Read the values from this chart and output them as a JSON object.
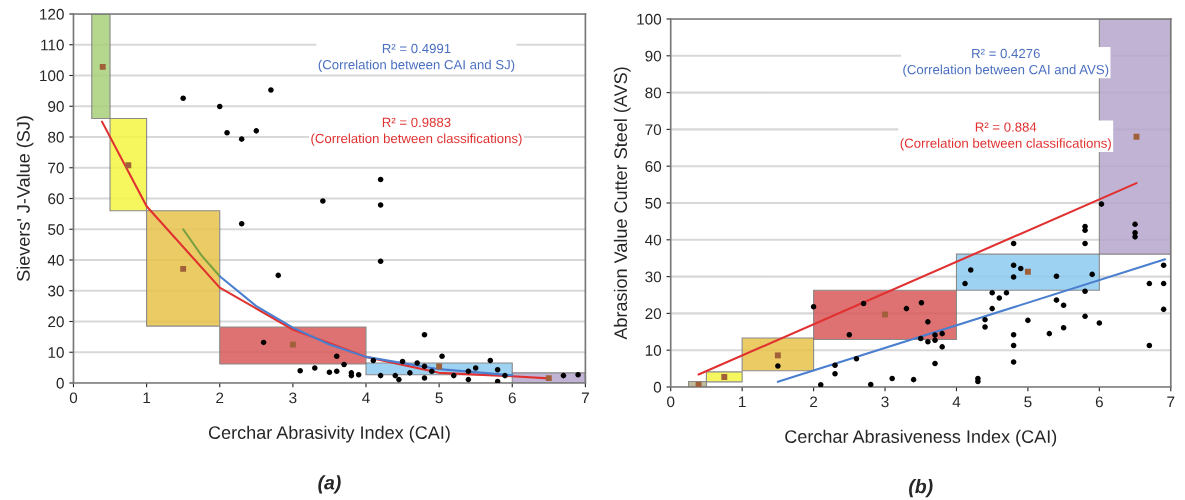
{
  "chart_data": [
    {
      "type": "scatter",
      "xlabel": "Cerchar Abrasivity Index (CAI)",
      "ylabel": "Sievers' J-Value (SJ)",
      "xlim": [
        0,
        7
      ],
      "xticks": [
        0,
        1,
        2,
        3,
        4,
        5,
        6,
        7
      ],
      "ylim": [
        0,
        120
      ],
      "yticks": [
        0,
        10,
        20,
        30,
        40,
        50,
        60,
        70,
        80,
        90,
        100,
        110,
        120
      ],
      "grid": "y",
      "annotations": [
        "R² = 0.4991\n(Correlation between CAI and SJ)",
        "R² = 0.9883\n(Correlation between classifications)",
        "(a)"
      ],
      "series": [
        {
          "type": "bar",
          "x": [
            0.375,
            0.75,
            1.5,
            3.0,
            5.0,
            6.5
          ],
          "base": [
            86,
            56,
            18.5,
            6.2,
            2.7,
            0
          ],
          "values": [
            34,
            30,
            37.5,
            12,
            3.8,
            3.3
          ],
          "colors": [
            "#a9cf7a",
            "#f5f542",
            "#e8c24a",
            "#d9595a",
            "#8ecbf0",
            "#b6a6cc"
          ]
        },
        {
          "marker": "square",
          "color": "#a0603a",
          "x": [
            0.4,
            0.75,
            1.5,
            3.0,
            5.0,
            6.5
          ],
          "values": [
            102.8,
            70.8,
            37.1,
            12.5,
            5.4,
            1.6
          ]
        },
        {
          "type": "line",
          "color": "#e03030",
          "x": [
            0.39,
            1.0,
            2.0,
            3.0,
            3.92,
            4.0,
            5.0,
            6.0,
            6.5
          ],
          "values": [
            85,
            57.5,
            31,
            17.4,
            9.2,
            8.5,
            3.3,
            2.2,
            1.5
          ]
        },
        {
          "type": "line",
          "color": "#7aa040",
          "x": [
            1.5,
            1.75,
            2.0
          ],
          "values": [
            50,
            41.5,
            34.7
          ]
        },
        {
          "type": "line",
          "color": "#4a7fd0",
          "x": [
            2.0,
            2.5,
            3.0,
            3.5,
            4.0,
            5.0,
            6.0
          ],
          "values": [
            34.7,
            25,
            18,
            12.5,
            8.5,
            4.5,
            2.5
          ]
        },
        {
          "marker": "circle",
          "color": "#000000",
          "x": [
            1.5,
            2.0,
            2.1,
            2.3,
            2.5,
            2.7,
            2.3,
            3.41,
            2.8,
            2.6,
            3.6,
            3.1,
            3.3,
            3.5,
            3.6,
            3.7,
            3.8,
            3.8,
            3.9,
            4.2,
            4.2,
            4.2,
            4.8,
            5.04,
            4.1,
            4.2,
            4.4,
            4.45,
            4.5,
            4.6,
            4.7,
            4.8,
            4.8,
            4.9,
            5.2,
            5.4,
            5.4,
            5.5,
            5.7,
            5.8,
            5.8,
            5.9,
            6.7,
            6.9
          ],
          "values": [
            92.6,
            89.9,
            81.4,
            79.3,
            82,
            95.3,
            51.8,
            59.2,
            35,
            13.2,
            8.7,
            4,
            4.9,
            3.5,
            3.8,
            6,
            3.3,
            2.4,
            2.7,
            66.2,
            57.9,
            39.6,
            15.7,
            8.7,
            7.3,
            2.4,
            2.4,
            1.1,
            7,
            3.3,
            6.5,
            1.6,
            5.4,
            3.8,
            2.4,
            3.8,
            1.1,
            4.9,
            7.3,
            0.5,
            4.3,
            2.4,
            2.4,
            2.7
          ]
        }
      ]
    },
    {
      "type": "scatter",
      "xlabel": "Cerchar Abrasiveness Index (CAI)",
      "ylabel": "Abrasion Value Cutter Steel (AVS)",
      "xlim": [
        0,
        7
      ],
      "xticks": [
        0,
        1,
        2,
        3,
        4,
        5,
        6,
        7
      ],
      "ylim": [
        0,
        100
      ],
      "yticks": [
        0,
        10,
        20,
        30,
        40,
        50,
        60,
        70,
        80,
        90,
        100
      ],
      "grid": "y",
      "annotations": [
        "R² = 0.4276\n(Correlation between CAI and AVS)",
        "R² = 0.884\n(Correlation between classifications)",
        "(b)"
      ],
      "series": [
        {
          "type": "bar",
          "x": [
            0.375,
            0.75,
            1.5,
            3.0,
            5.0,
            6.5
          ],
          "base": [
            0,
            1.4,
            4.4,
            12.9,
            26.3,
            36.1
          ],
          "values": [
            1.5,
            2.7,
            8.9,
            13.4,
            9.8,
            63.9
          ],
          "colors": [
            "#b5b08a",
            "#f5f542",
            "#e8c24a",
            "#d9595a",
            "#8ecbf0",
            "#b6a6cc"
          ]
        },
        {
          "marker": "square",
          "color": "#a0603a",
          "x": [
            0.39,
            0.75,
            1.5,
            3.0,
            5.0,
            6.52
          ],
          "values": [
            0.6,
            2.7,
            8.6,
            19.7,
            31.3,
            68
          ]
        },
        {
          "type": "line",
          "color": "#e03030",
          "x": [
            0.39,
            6.52
          ],
          "values": [
            3.4,
            55.4
          ]
        },
        {
          "type": "line",
          "color": "#4a7fd0",
          "x": [
            1.5,
            6.92
          ],
          "values": [
            1.4,
            34.7
          ]
        },
        {
          "marker": "circle",
          "color": "#000000",
          "x": [
            2.0,
            2.1,
            2.3,
            2.3,
            2.5,
            2.6,
            2.7,
            2.8,
            3.1,
            3.3,
            3.4,
            1.5,
            3.51,
            3.6,
            3.5,
            3.6,
            3.7,
            3.7,
            3.8,
            3.8,
            3.7,
            4.3,
            4.3,
            4.12,
            4.2,
            4.4,
            4.4,
            4.5,
            4.5,
            4.6,
            4.7,
            4.8,
            4.8,
            4.8,
            4.8,
            4.8,
            4.8,
            4.9,
            5.0,
            5.3,
            5.4,
            5.4,
            5.5,
            5.5,
            5.8,
            5.8,
            5.8,
            5.8,
            5.8,
            5.9,
            6.0,
            6.03,
            6.5,
            6.5,
            6.5,
            6.7,
            6.7,
            6.9,
            6.9,
            6.9
          ],
          "values": [
            21.8,
            0.6,
            5.9,
            3.6,
            14.2,
            7.7,
            22.7,
            0.7,
            2.3,
            21.3,
            2.0,
            5.7,
            22.9,
            17.7,
            13.2,
            12.3,
            14.1,
            12.7,
            14.5,
            10.9,
            6.4,
            2.3,
            1.5,
            28.1,
            31.8,
            18.3,
            16.3,
            21.3,
            25.6,
            24.2,
            25.6,
            39,
            33.1,
            29.9,
            14.2,
            11.3,
            6.8,
            32.2,
            18.1,
            14.5,
            30.1,
            23.6,
            22.2,
            16.1,
            19.2,
            43.6,
            42.6,
            39,
            26,
            30.6,
            17.4,
            49.7,
            44.2,
            41.9,
            40.8,
            11.3,
            28.1,
            33.1,
            28.1,
            21.1
          ]
        }
      ]
    }
  ]
}
